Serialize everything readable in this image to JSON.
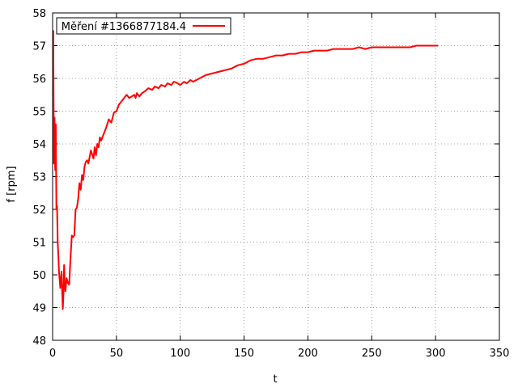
{
  "chart_data": {
    "type": "line",
    "xlabel": "t",
    "ylabel": "f [rpm]",
    "xlim": [
      0,
      350
    ],
    "ylim": [
      48,
      58
    ],
    "xticks": [
      0,
      50,
      100,
      150,
      200,
      250,
      300,
      350
    ],
    "yticks": [
      48,
      49,
      50,
      51,
      52,
      53,
      54,
      55,
      56,
      57,
      58
    ],
    "grid": true,
    "legend_position": "top-left",
    "series": [
      {
        "name": "Měření #1366877184.4",
        "color": "#ff0000",
        "x": [
          0,
          0.5,
          1,
          1.5,
          2,
          2.5,
          3,
          3.5,
          4,
          4.5,
          5,
          6,
          7,
          8,
          8.5,
          9,
          9.5,
          10,
          11,
          12,
          13,
          14,
          15,
          16,
          17,
          18,
          19,
          20,
          21,
          22,
          23,
          24,
          25,
          26,
          27,
          28,
          30,
          32,
          33,
          34,
          35,
          36,
          37,
          38,
          40,
          42,
          44,
          46,
          48,
          50,
          52,
          55,
          58,
          60,
          62,
          64,
          65,
          66,
          68,
          70,
          72,
          75,
          78,
          80,
          83,
          85,
          88,
          90,
          93,
          95,
          98,
          100,
          103,
          105,
          108,
          110,
          115,
          120,
          125,
          130,
          135,
          140,
          145,
          150,
          155,
          160,
          165,
          170,
          175,
          180,
          185,
          190,
          195,
          200,
          205,
          210,
          215,
          220,
          225,
          230,
          235,
          240,
          245,
          250,
          255,
          260,
          265,
          270,
          275,
          280,
          285,
          290,
          295,
          300,
          302
        ],
        "y": [
          57.45,
          57.45,
          53.4,
          54.8,
          53.2,
          54.6,
          52.0,
          52.1,
          51.0,
          50.6,
          50.1,
          49.6,
          50.1,
          48.95,
          49.4,
          50.3,
          49.7,
          49.5,
          49.9,
          49.75,
          49.7,
          50.5,
          51.2,
          51.15,
          51.2,
          52.0,
          52.05,
          52.3,
          52.8,
          52.6,
          53.05,
          52.9,
          53.3,
          53.45,
          53.5,
          53.4,
          53.8,
          53.55,
          53.9,
          53.65,
          54.0,
          53.9,
          54.2,
          54.1,
          54.3,
          54.5,
          54.75,
          54.65,
          54.95,
          55.0,
          55.2,
          55.35,
          55.5,
          55.4,
          55.45,
          55.5,
          55.4,
          55.55,
          55.45,
          55.55,
          55.6,
          55.7,
          55.65,
          55.75,
          55.7,
          55.8,
          55.75,
          55.85,
          55.8,
          55.9,
          55.85,
          55.8,
          55.9,
          55.85,
          55.95,
          55.9,
          56.0,
          56.1,
          56.15,
          56.2,
          56.25,
          56.3,
          56.4,
          56.45,
          56.55,
          56.6,
          56.6,
          56.65,
          56.7,
          56.7,
          56.75,
          56.75,
          56.8,
          56.8,
          56.85,
          56.85,
          56.85,
          56.9,
          56.9,
          56.9,
          56.9,
          56.95,
          56.9,
          56.95,
          56.95,
          56.95,
          56.95,
          56.95,
          56.95,
          56.95,
          57.0,
          57.0,
          57.0,
          57.0,
          57.0
        ]
      }
    ]
  }
}
